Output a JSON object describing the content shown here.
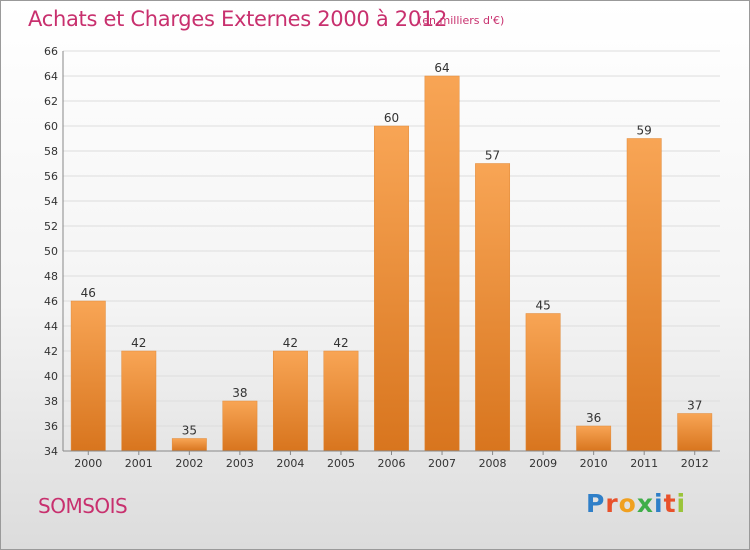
{
  "header": {
    "title": "Achats et Charges Externes 2000 à 2012",
    "subtitle": "(en milliers d'€)"
  },
  "footer": {
    "commune": "SOMSOIS",
    "logo_text": "Proxiti"
  },
  "colors": {
    "title": "#c8306e",
    "bar_top": "#f8a555",
    "bar_bottom": "#d8751e",
    "grid": "#dddddd",
    "axis": "#888888"
  },
  "chart_data": {
    "type": "bar",
    "title": "Achats et Charges Externes 2000 à 2012",
    "xlabel": "",
    "ylabel": "",
    "categories": [
      "2000",
      "2001",
      "2002",
      "2003",
      "2004",
      "2005",
      "2006",
      "2007",
      "2008",
      "2009",
      "2010",
      "2011",
      "2012"
    ],
    "values": [
      46,
      42,
      35,
      38,
      42,
      42,
      60,
      64,
      57,
      45,
      36,
      59,
      37
    ],
    "ylim": [
      34,
      66
    ],
    "ytick_step": 2,
    "grid": true,
    "legend": "none"
  }
}
